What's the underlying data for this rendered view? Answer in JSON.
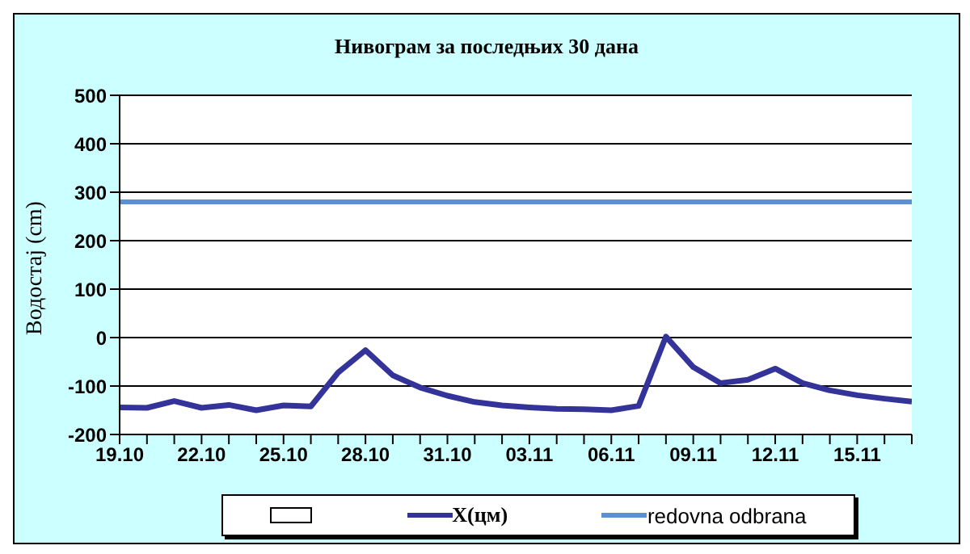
{
  "chart_data": {
    "type": "line",
    "title": "Нивограм за последњих 30 дана",
    "ylabel": "Водостај (cm)",
    "categories": [
      "19.10",
      null,
      null,
      "22.10",
      null,
      null,
      "25.10",
      null,
      null,
      "28.10",
      null,
      null,
      "31.10",
      null,
      null,
      "03.11",
      null,
      null,
      "06.11",
      null,
      null,
      "09.11",
      null,
      null,
      "12.11",
      null,
      null,
      "15.11",
      null,
      null
    ],
    "series": [
      {
        "name": "X(цм)",
        "color": "#333399",
        "values": [
          -144,
          -145,
          -131,
          -145,
          -139,
          -150,
          -140,
          -142,
          -72,
          -26,
          -78,
          -103,
          -120,
          -133,
          -140,
          -144,
          -147,
          -148,
          -150,
          -141,
          2,
          -61,
          -94,
          -87,
          -64,
          -94,
          -109,
          -119,
          -126,
          -132
        ]
      },
      {
        "name": "redovna odbrana",
        "color": "#5b8fd6",
        "values": [
          280,
          280,
          280,
          280,
          280,
          280,
          280,
          280,
          280,
          280,
          280,
          280,
          280,
          280,
          280,
          280,
          280,
          280,
          280,
          280,
          280,
          280,
          280,
          280,
          280,
          280,
          280,
          280,
          280,
          280
        ]
      }
    ],
    "ylim": [
      -200,
      500
    ],
    "yticks": [
      -200,
      -100,
      0,
      100,
      200,
      300,
      400,
      500
    ],
    "grid": "y",
    "legend": "bottom",
    "marker": "none",
    "line_style": "solid"
  }
}
